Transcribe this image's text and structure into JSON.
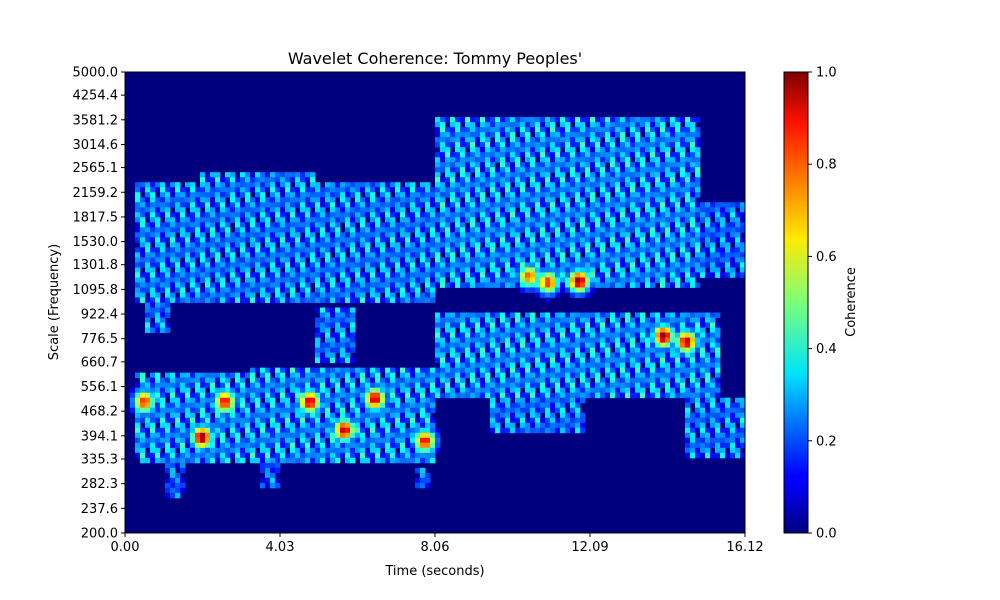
{
  "chart_data": {
    "type": "heatmap",
    "title": "Wavelet Coherence: Tommy Peoples'",
    "xlabel": "Time (seconds)",
    "ylabel": "Scale (Frequency)",
    "xlim": [
      0.0,
      16.12
    ],
    "ylim": [
      200.0,
      5000.0
    ],
    "yscale": "log",
    "x_ticks": [
      "0.00",
      "4.03",
      "8.06",
      "12.09",
      "16.12"
    ],
    "y_ticks": [
      "200.0",
      "237.6",
      "282.3",
      "335.3",
      "394.1",
      "468.2",
      "556.1",
      "660.7",
      "776.5",
      "922.4",
      "1095.8",
      "1301.8",
      "1530.0",
      "1817.5",
      "2159.2",
      "2565.1",
      "3014.6",
      "3581.2",
      "4254.4",
      "5000.0"
    ],
    "colormap": "jet",
    "colorbar": {
      "label": "Coherence",
      "range": [
        0.0,
        1.0
      ],
      "ticks": [
        "0.0",
        "0.2",
        "0.4",
        "0.6",
        "0.8",
        "1.0"
      ]
    },
    "background_value": 0.0,
    "hotspots": [
      {
        "time": 2.0,
        "scale": 390,
        "coherence": 1.0
      },
      {
        "time": 4.8,
        "scale": 500,
        "coherence": 0.95
      },
      {
        "time": 5.7,
        "scale": 410,
        "coherence": 0.95
      },
      {
        "time": 6.5,
        "scale": 510,
        "coherence": 0.95
      },
      {
        "time": 11.8,
        "scale": 1160,
        "coherence": 1.0
      },
      {
        "time": 14.0,
        "scale": 790,
        "coherence": 1.0
      },
      {
        "time": 14.6,
        "scale": 760,
        "coherence": 0.95
      },
      {
        "time": 7.8,
        "scale": 380,
        "coherence": 0.9
      },
      {
        "time": 2.6,
        "scale": 500,
        "coherence": 0.9
      },
      {
        "time": 0.5,
        "scale": 500,
        "coherence": 0.85
      },
      {
        "time": 11.0,
        "scale": 1150,
        "coherence": 0.85
      },
      {
        "time": 10.5,
        "scale": 1200,
        "coherence": 0.8
      }
    ]
  }
}
